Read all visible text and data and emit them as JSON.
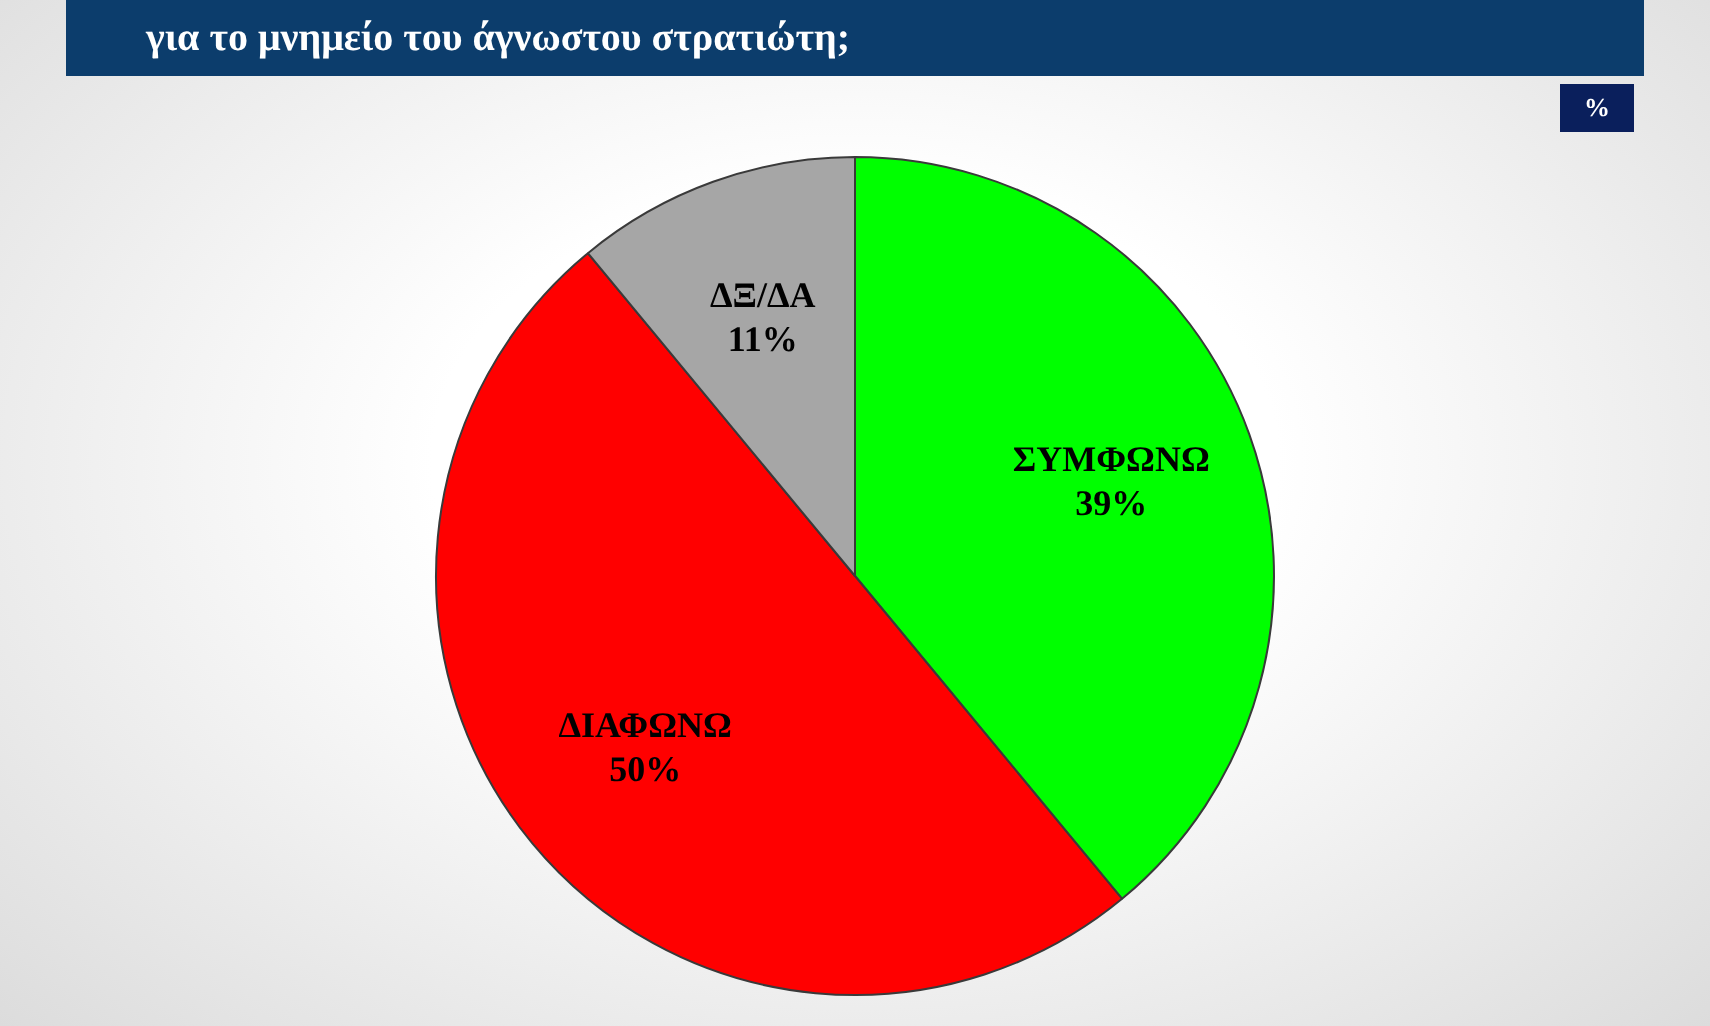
{
  "chart_data": {
    "type": "pie",
    "title": "για το μνημείο του άγνωστου στρατιώτη;",
    "categories": [
      "ΣΥΜΦΩΝΩ",
      "ΔΙΑΦΩΝΩ",
      "ΔΞ/ΔΑ"
    ],
    "values": [
      39,
      50,
      11
    ],
    "colors": [
      "#00ff00",
      "#ff0000",
      "#a6a6a6"
    ],
    "value_labels": [
      "39%",
      "50%",
      "11%"
    ],
    "annotations": [
      "%"
    ]
  }
}
